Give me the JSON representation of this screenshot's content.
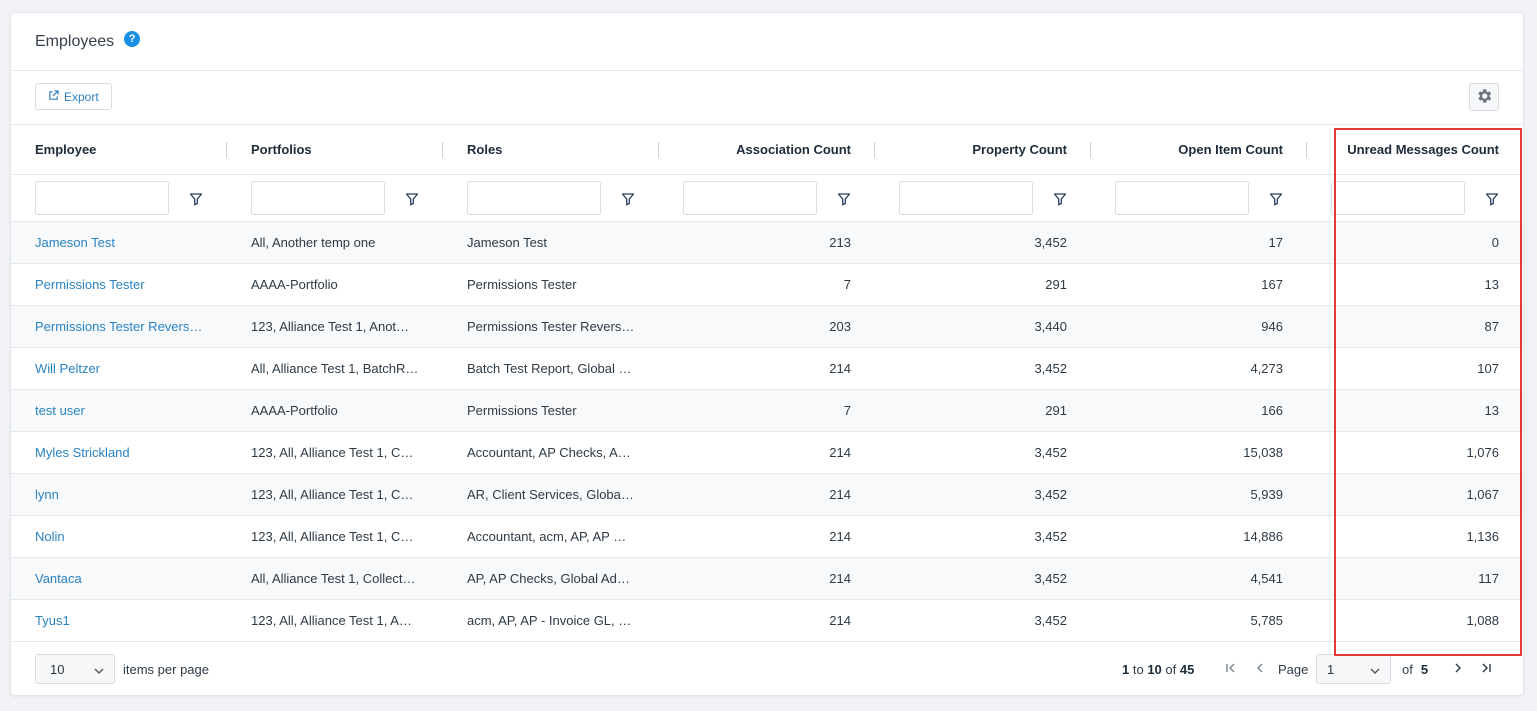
{
  "header": {
    "title": "Employees",
    "help_icon": "question-circle-icon"
  },
  "toolbar": {
    "export_label": "Export",
    "export_icon": "external-link-icon",
    "settings_icon": "gear-icon"
  },
  "columns": [
    {
      "label": "Employee"
    },
    {
      "label": "Portfolios"
    },
    {
      "label": "Roles"
    },
    {
      "label": "Association Count"
    },
    {
      "label": "Property Count"
    },
    {
      "label": "Open Item Count"
    },
    {
      "label": "Unread Messages Count"
    }
  ],
  "rows": [
    [
      "Jameson Test",
      "All, Another temp one",
      "Jameson Test",
      "213",
      "3,452",
      "17",
      "0"
    ],
    [
      "Permissions Tester",
      "AAAA-Portfolio",
      "Permissions Tester",
      "7",
      "291",
      "167",
      "13"
    ],
    [
      "Permissions Tester Revers…",
      "123, Alliance Test 1, Anot…",
      "Permissions Tester Revers…",
      "203",
      "3,440",
      "946",
      "87"
    ],
    [
      "Will Peltzer",
      "All, Alliance Test 1, BatchR…",
      "Batch Test Report, Global …",
      "214",
      "3,452",
      "4,273",
      "107"
    ],
    [
      "test user",
      "AAAA-Portfolio",
      "Permissions Tester",
      "7",
      "291",
      "166",
      "13"
    ],
    [
      "Myles Strickland",
      "123, All, Alliance Test 1, C…",
      "Accountant, AP Checks, A…",
      "214",
      "3,452",
      "15,038",
      "1,076"
    ],
    [
      "lynn",
      "123, All, Alliance Test 1, C…",
      "AR, Client Services, Global…",
      "214",
      "3,452",
      "5,939",
      "1,067"
    ],
    [
      "Nolin",
      "123, All, Alliance Test 1, C…",
      "Accountant, acm, AP, AP …",
      "214",
      "3,452",
      "14,886",
      "1,136"
    ],
    [
      "Vantaca",
      "All, Alliance Test 1, Collect…",
      "AP, AP Checks, Global Ad…",
      "214",
      "3,452",
      "4,541",
      "117"
    ],
    [
      "Tyus1",
      "123, All, Alliance Test 1, A…",
      "acm, AP, AP - Invoice GL, …",
      "214",
      "3,452",
      "5,785",
      "1,088"
    ]
  ],
  "footer": {
    "page_size": "10",
    "items_per_page_label": "items per page",
    "range_start": "1",
    "range_to": "to",
    "range_end": "10",
    "range_of": "of",
    "total": "45",
    "page_label": "Page",
    "current_page": "1",
    "of_label": "of",
    "total_pages": "5"
  },
  "colors": {
    "link": "#2a83c4",
    "accent": "#1b8fe3",
    "highlight": "#e53935"
  }
}
